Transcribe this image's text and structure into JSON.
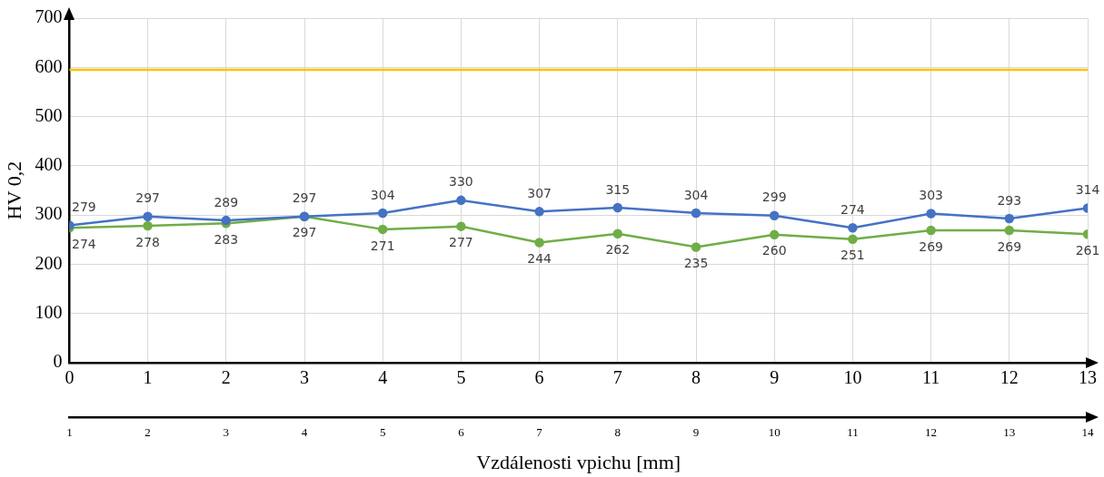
{
  "chart_data": {
    "type": "line",
    "ylabel": "HV 0,2",
    "xlabel": "Vzdálenosti vpichu [mm]",
    "x": [
      0,
      1,
      2,
      3,
      4,
      5,
      6,
      7,
      8,
      9,
      10,
      11,
      12,
      13
    ],
    "series": [
      {
        "color": "#4472c4",
        "values": [
          279,
          297,
          289,
          297,
          304,
          330,
          307,
          315,
          304,
          299,
          274,
          303,
          293,
          314
        ]
      },
      {
        "color": "#70ad47",
        "values": [
          274,
          278,
          283,
          297,
          271,
          277,
          244,
          262,
          235,
          260,
          251,
          269,
          269,
          261
        ]
      }
    ],
    "xlim": [
      0,
      13
    ],
    "xticks": [
      0,
      1,
      2,
      3,
      4,
      5,
      6,
      7,
      8,
      9,
      10,
      11,
      12,
      13
    ],
    "x2lim": [
      1,
      14
    ],
    "x2ticks": [
      1,
      2,
      3,
      4,
      5,
      6,
      7,
      8,
      9,
      10,
      11,
      12,
      13,
      14
    ],
    "ylim": [
      0,
      700
    ],
    "yticks": [
      0,
      100,
      200,
      300,
      400,
      500,
      600,
      700
    ],
    "ref_lines": [
      {
        "axis": "y",
        "value": 595,
        "color": "#ffc000"
      }
    ],
    "grid": true,
    "marker": "circle",
    "line_style": "solid",
    "data_labels": true
  }
}
